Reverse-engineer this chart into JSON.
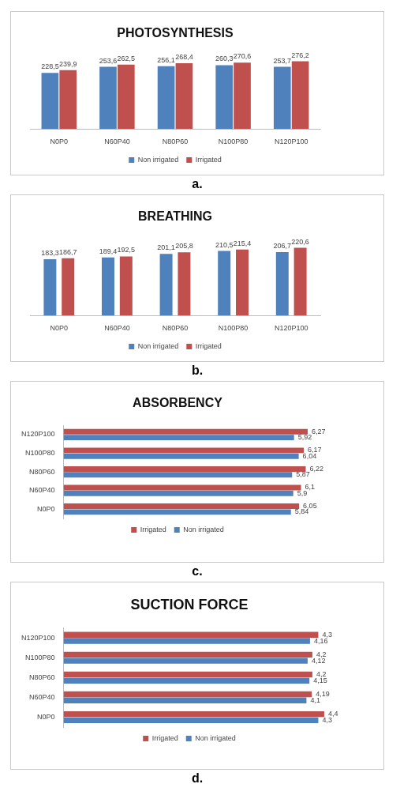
{
  "chart_data": [
    {
      "type": "bar",
      "title": "PHOTOSYNTHESIS",
      "categories": [
        "N0P0",
        "N60P40",
        "N80P60",
        "N100P80",
        "N120P100"
      ],
      "series": [
        {
          "name": "Non irrigated",
          "color": "#4f81bd",
          "values": [
            228.5,
            253.6,
            256.1,
            260.3,
            253.7
          ],
          "value_labels": [
            "228,5",
            "253,6",
            "256,1",
            "260,3",
            "253,7"
          ]
        },
        {
          "name": "Irrigated",
          "color": "#c0504d",
          "values": [
            239.9,
            262.5,
            268.4,
            270.6,
            276.2
          ],
          "value_labels": [
            "239,9",
            "262,5",
            "268,4",
            "270,6",
            "276,2"
          ]
        }
      ],
      "legend": "bottom",
      "tick_labels": "x",
      "annotations": [
        "a."
      ]
    },
    {
      "type": "bar",
      "title": "BREATHING",
      "categories": [
        "N0P0",
        "N60P40",
        "N80P60",
        "N100P80",
        "N120P100"
      ],
      "series": [
        {
          "name": "Non irrigated",
          "color": "#4f81bd",
          "values": [
            183.3,
            189.4,
            201.1,
            210.5,
            206.7
          ],
          "value_labels": [
            "183,3",
            "189,4",
            "201,1",
            "210,5",
            "206,7"
          ]
        },
        {
          "name": "Irrigated",
          "color": "#c0504d",
          "values": [
            186.7,
            192.5,
            205.8,
            215.4,
            220.6
          ],
          "value_labels": [
            "186,7",
            "192,5",
            "205,8",
            "215,4",
            "220,6"
          ]
        }
      ],
      "legend": "bottom",
      "tick_labels": "x",
      "annotations": [
        "b."
      ]
    },
    {
      "type": "bar",
      "orientation": "horizontal",
      "title": "ABSORBENCY",
      "categories": [
        "N120P100",
        "N100P80",
        "N80P60",
        "N60P40",
        "N0P0"
      ],
      "series": [
        {
          "name": "Irrigated",
          "color": "#c0504d",
          "values": [
            6.27,
            6.17,
            6.22,
            6.1,
            6.05
          ],
          "value_labels": [
            "6,27",
            "6,17",
            "6,22",
            "6,1",
            "6,05"
          ]
        },
        {
          "name": "Non irrigated",
          "color": "#4f81bd",
          "values": [
            5.92,
            6.04,
            5.87,
            5.9,
            5.84
          ],
          "value_labels": [
            "5,92",
            "6,04",
            "5,87",
            "5,9",
            "5,84"
          ]
        }
      ],
      "legend": "bottom",
      "tick_labels": "y",
      "annotations": [
        "c."
      ]
    },
    {
      "type": "bar",
      "orientation": "horizontal",
      "title": "SUCTION FORCE",
      "categories": [
        "N120P100",
        "N100P80",
        "N80P60",
        "N60P40",
        "N0P0"
      ],
      "series": [
        {
          "name": "Irrigated",
          "color": "#c0504d",
          "values": [
            4.3,
            4.2,
            4.2,
            4.19,
            4.4
          ],
          "value_labels": [
            "4,3",
            "4,2",
            "4,2",
            "4,19",
            "4,4"
          ]
        },
        {
          "name": "Non irrigated",
          "color": "#4f81bd",
          "values": [
            4.16,
            4.12,
            4.15,
            4.1,
            4.3
          ],
          "value_labels": [
            "4,16",
            "4,12",
            "4,15",
            "4,1",
            "4,3"
          ]
        }
      ],
      "legend": "bottom",
      "tick_labels": "y",
      "annotations": [
        "d."
      ]
    }
  ]
}
